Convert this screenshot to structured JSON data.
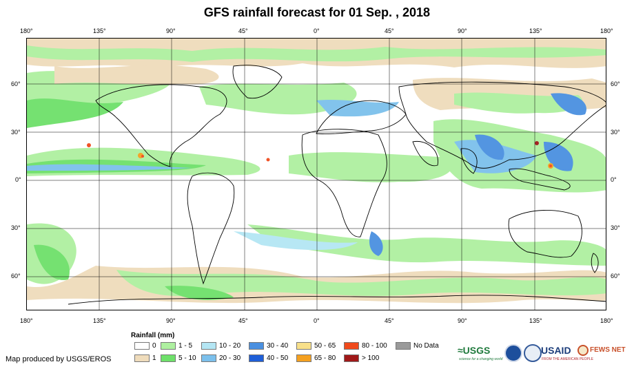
{
  "title": "GFS rainfall forecast for 01 Sep. , 2018",
  "lon_ticks": [
    "180°",
    "135°",
    "90°",
    "45°",
    "0°",
    "45°",
    "90°",
    "135°",
    "180°"
  ],
  "lat_ticks": [
    "60°",
    "30°",
    "0°",
    "30°",
    "60°"
  ],
  "legend": {
    "title": "Rainfall (mm)",
    "rows": [
      [
        {
          "label": "0",
          "color": "#ffffff"
        },
        {
          "label": "1 - 5",
          "color": "#aef0a0"
        },
        {
          "label": "10 - 20",
          "color": "#b4e6f4"
        },
        {
          "label": "30 - 40",
          "color": "#4a90e0"
        },
        {
          "label": "50 - 65",
          "color": "#f8e08a"
        },
        {
          "label": "80 - 100",
          "color": "#f04a1c"
        },
        {
          "label": "No Data",
          "color": "#9a9a9a"
        }
      ],
      [
        {
          "label": "1",
          "color": "#efdcbb"
        },
        {
          "label": "5 - 10",
          "color": "#6ee06a"
        },
        {
          "label": "20 - 30",
          "color": "#7cc0ec"
        },
        {
          "label": "40 - 50",
          "color": "#1f5fd8"
        },
        {
          "label": "65 - 80",
          "color": "#f4a020"
        },
        {
          "label": "> 100",
          "color": "#a01818"
        }
      ]
    ]
  },
  "credit": "Map produced by USGS/EROS",
  "logos": {
    "usgs": "≈USGS",
    "usgs_tagline": "science for a changing world",
    "usaid": "USAID",
    "usaid_tagline": "FROM THE AMERICAN PEOPLE",
    "fewsnet": "FEWS NET"
  }
}
